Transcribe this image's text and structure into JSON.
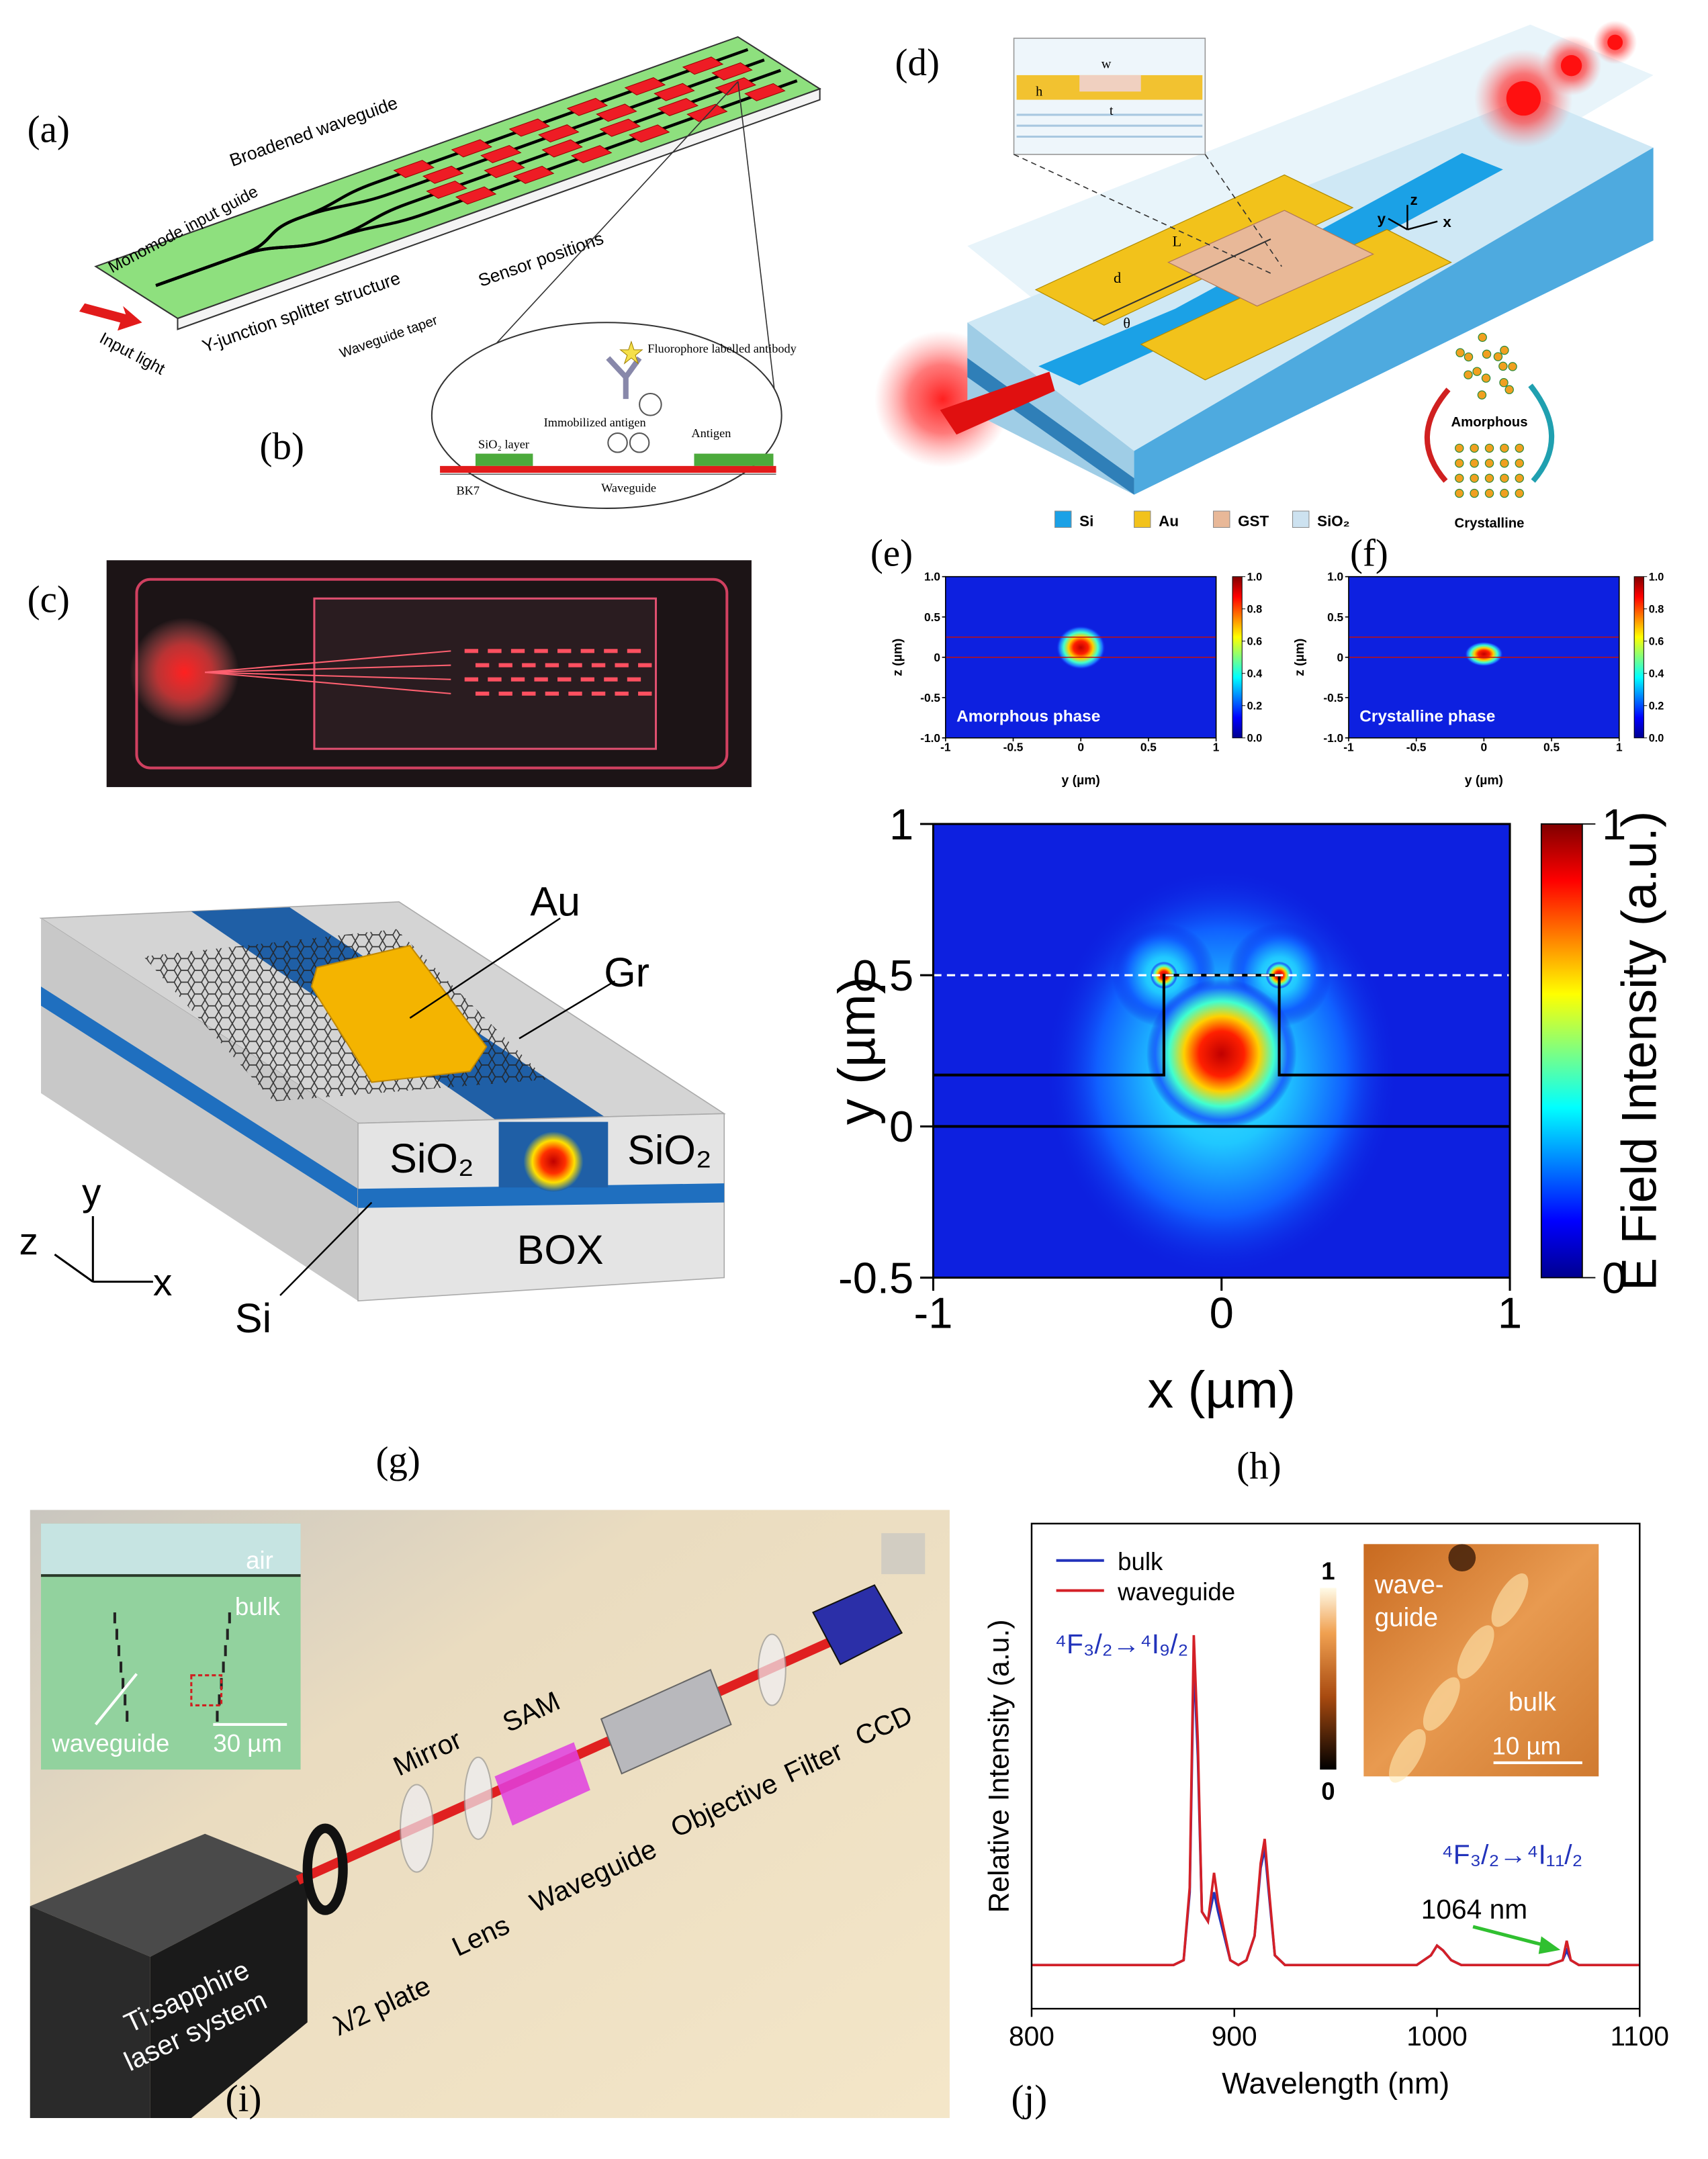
{
  "panels": {
    "a": {
      "label": "(a)",
      "broadened": "Broadened waveguide",
      "monomode": "Monomode input guide",
      "input": "Input light",
      "yjunction": "Y-junction splitter structure",
      "taper": "Waveguide taper",
      "sensor": "Sensor positions"
    },
    "b": {
      "label": "(b)",
      "fluorophore": "Fluorophore labelled antibody",
      "immobilized": "Immobilized antigen",
      "antigen": "Antigen",
      "sio2": "SiO₂ layer",
      "bk7": "BK7",
      "waveguide": "Waveguide"
    },
    "c": {
      "label": "(c)"
    },
    "d": {
      "label": "(d)",
      "w": "w",
      "h": "h",
      "t": "t",
      "L": "L",
      "d": "d",
      "theta": "θ",
      "axes": [
        "y",
        "z",
        "x"
      ],
      "amorphous": "Amorphous",
      "crystalline": "Crystalline",
      "legend": [
        "Si",
        "Au",
        "GST",
        "SiO₂"
      ]
    },
    "g": {
      "label": "(g)",
      "au": "Au",
      "gr": "Gr",
      "sio2_left": "SiO₂",
      "sio2_right": "SiO₂",
      "box": "BOX",
      "si": "Si",
      "axes": [
        "z",
        "y",
        "x"
      ]
    },
    "i": {
      "label": "(i)",
      "air": "air",
      "bulk": "bulk",
      "waveguide_inset": "waveguide",
      "scale": "30 µm",
      "mirror": "Mirror",
      "sam": "SAM",
      "half_wave": "λ/2 plate",
      "lens": "Lens",
      "waveguide": "Waveguide",
      "objective": "Objective",
      "filter": "Filter",
      "ccd": "CCD",
      "laser": [
        "Ti:sapphire",
        "laser system"
      ]
    }
  },
  "chart_data": [
    {
      "type": "heatmap",
      "panel_label": "(e)",
      "annotation": "Amorphous phase",
      "x_label": "y (µm)",
      "y_label": "z (µm)",
      "xlim": [
        -1,
        1
      ],
      "xticks": [
        -1,
        -0.5,
        0,
        0.5,
        1
      ],
      "ylim": [
        -1,
        1
      ],
      "yticks": [
        {
          "value": -1,
          "label": "-1.0"
        },
        -0.5,
        0,
        0.5,
        {
          "value": 1,
          "label": "1.0"
        }
      ],
      "colorbar": {
        "lim": [
          0,
          1
        ],
        "ticks": [
          {
            "value": 0,
            "label": "0.0"
          },
          0.2,
          0.4,
          0.6,
          0.8,
          {
            "value": 1,
            "label": "1.0"
          }
        ]
      }
    },
    {
      "type": "heatmap",
      "panel_label": "(f)",
      "annotation": "Crystalline phase",
      "x_label": "y (µm)",
      "y_label": "z (µm)",
      "xlim": [
        -1,
        1
      ],
      "xticks": [
        -1,
        -0.5,
        0,
        0.5,
        1
      ],
      "ylim": [
        -1,
        1
      ],
      "yticks": [
        {
          "value": -1,
          "label": "-1.0"
        },
        -0.5,
        0,
        0.5,
        {
          "value": 1,
          "label": "1.0"
        }
      ],
      "colorbar": {
        "lim": [
          0,
          1
        ],
        "ticks": [
          {
            "value": 0,
            "label": "0.0"
          },
          0.2,
          0.4,
          0.6,
          0.8,
          {
            "value": 1,
            "label": "1.0"
          }
        ]
      }
    },
    {
      "type": "heatmap",
      "panel_label": "(h)",
      "x_label": "x (µm)",
      "y_label": "y (µm)",
      "xlim": [
        -1,
        1
      ],
      "xticks": [
        -1,
        0,
        1
      ],
      "ylim": [
        -0.5,
        1
      ],
      "yticks": [
        -0.5,
        0,
        0.5,
        1
      ],
      "colorbar": {
        "label": "E Field Intensity (a.u.)",
        "lim": [
          0,
          1
        ],
        "ticks": [
          0,
          1
        ]
      }
    },
    {
      "type": "line",
      "panel_label": "(j)",
      "x_label": "Wavelength (nm)",
      "y_label": "Relative Intensity (a.u.)",
      "x": [
        800,
        830,
        860,
        870,
        875,
        878,
        880,
        882,
        884,
        887,
        890,
        892,
        895,
        898,
        902,
        906,
        910,
        913,
        915,
        917,
        920,
        925,
        940,
        970,
        990,
        997,
        1000,
        1003,
        1007,
        1012,
        1030,
        1055,
        1062,
        1064,
        1066,
        1070,
        1085,
        1100
      ],
      "xlim": [
        800,
        1100
      ],
      "xticks": [
        800,
        900,
        1000,
        1100
      ],
      "ylim": [
        0,
        1
      ],
      "series": [
        {
          "name": "bulk",
          "color": "#2233bb",
          "values": [
            0.09,
            0.09,
            0.09,
            0.09,
            0.1,
            0.24,
            0.72,
            0.52,
            0.2,
            0.18,
            0.24,
            0.2,
            0.15,
            0.1,
            0.09,
            0.1,
            0.15,
            0.29,
            0.33,
            0.24,
            0.11,
            0.09,
            0.09,
            0.09,
            0.09,
            0.11,
            0.13,
            0.12,
            0.1,
            0.09,
            0.09,
            0.09,
            0.1,
            0.12,
            0.1,
            0.09,
            0.09,
            0.09
          ]
        },
        {
          "name": "waveguide",
          "color": "#d42027",
          "values": [
            0.09,
            0.09,
            0.09,
            0.09,
            0.1,
            0.25,
            0.77,
            0.55,
            0.2,
            0.18,
            0.28,
            0.22,
            0.16,
            0.1,
            0.09,
            0.1,
            0.15,
            0.3,
            0.35,
            0.25,
            0.11,
            0.09,
            0.09,
            0.09,
            0.09,
            0.11,
            0.13,
            0.12,
            0.1,
            0.09,
            0.09,
            0.09,
            0.1,
            0.14,
            0.1,
            0.09,
            0.09,
            0.09
          ]
        }
      ],
      "annotations": [
        "⁴F₃/₂→⁴I₉/₂",
        "⁴F₃/₂→⁴I₁₁/₂",
        "1064 nm"
      ],
      "inset": {
        "colorbar_ticks": [
          0,
          1
        ],
        "labels": [
          "wave-",
          "guide",
          "bulk"
        ],
        "scale": "10 µm"
      }
    }
  ]
}
